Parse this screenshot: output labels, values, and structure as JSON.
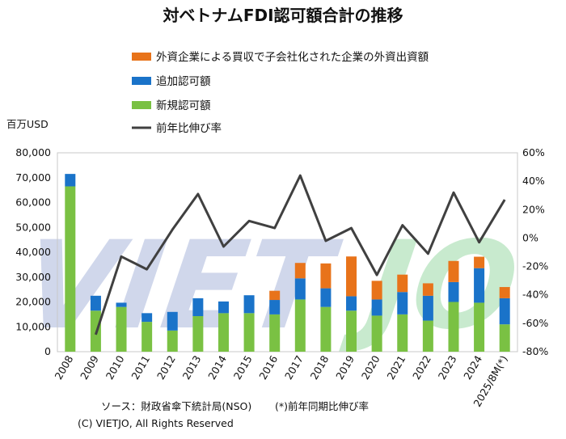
{
  "chart_data": {
    "type": "bar",
    "title": "対ベトナムFDI認可額合計の推移",
    "y_unit_label": "百万USD",
    "categories": [
      "2008",
      "2009",
      "2010",
      "2011",
      "2012",
      "2013",
      "2014",
      "2015",
      "2016",
      "2017",
      "2018",
      "2019",
      "2020",
      "2021",
      "2022",
      "2023",
      "2024",
      "2025/8M(*)"
    ],
    "series": [
      {
        "name": "新規認可額",
        "kind": "stacked-bar",
        "axis": "left",
        "color": "#7ac143",
        "values": [
          66500,
          16500,
          18000,
          12000,
          8500,
          14300,
          15500,
          15500,
          15000,
          21000,
          18000,
          16500,
          14500,
          15000,
          12500,
          20000,
          19700,
          11000
        ]
      },
      {
        "name": "追加認可額",
        "kind": "stacked-bar",
        "axis": "left",
        "color": "#1a73c9",
        "values": [
          5000,
          6000,
          1700,
          3500,
          7500,
          7200,
          4700,
          7200,
          5800,
          8500,
          7500,
          5800,
          6500,
          9000,
          10000,
          8000,
          13900,
          10500
        ]
      },
      {
        "name": "外資企業による買収で子会社化された企業の外資出資額",
        "kind": "stacked-bar",
        "axis": "left",
        "color": "#e8731a",
        "values": [
          0,
          0,
          0,
          0,
          0,
          0,
          0,
          0,
          3700,
          6200,
          10000,
          16000,
          7500,
          7000,
          5000,
          8500,
          4600,
          4500
        ]
      },
      {
        "name": "前年比伸び率",
        "kind": "line",
        "axis": "right",
        "color": "#404040",
        "values": [
          null,
          -68,
          -13,
          -22,
          6,
          31,
          -6,
          12,
          7,
          44,
          -2,
          7,
          -26,
          9,
          -11,
          32,
          -3,
          27
        ]
      }
    ],
    "ylim_left": [
      0,
      80000
    ],
    "yticks_left": [
      "0",
      "10,000",
      "20,000",
      "30,000",
      "40,000",
      "50,000",
      "60,000",
      "70,000",
      "80,000"
    ],
    "ylim_right": [
      -80,
      60
    ],
    "yticks_right": [
      "-80%",
      "-60%",
      "-40%",
      "-20%",
      "0%",
      "20%",
      "40%",
      "60%"
    ],
    "legend_position": "top",
    "grid": false
  },
  "footer": {
    "source": "ソース：財政省傘下統計局(NSO)",
    "note": "(*)前年同期比伸び率",
    "copyright": "(C) VIETJO, All Rights Reserved"
  },
  "watermark": {
    "part1": "VIET",
    "part2": "JO"
  }
}
